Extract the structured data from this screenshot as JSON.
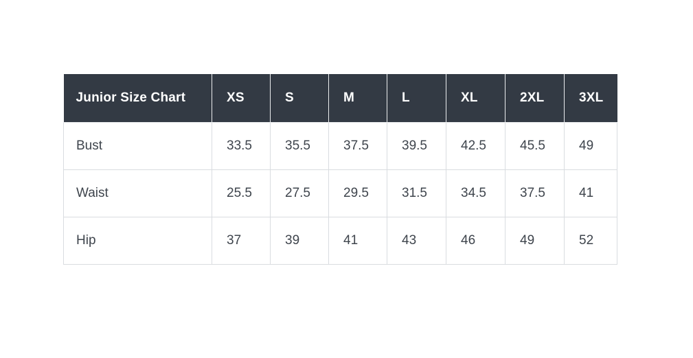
{
  "colors": {
    "page_background": "#ffffff",
    "header_background": "#333a44",
    "header_text": "#ffffff",
    "body_text": "#3e444c",
    "body_border": "#d9dce0",
    "header_border": "#eceef0"
  },
  "chart_data": {
    "type": "table",
    "title": "Junior Size Chart",
    "columns": [
      "XS",
      "S",
      "M",
      "L",
      "XL",
      "2XL",
      "3XL"
    ],
    "rows": [
      {
        "label": "Bust",
        "values": [
          "33.5",
          "35.5",
          "37.5",
          "39.5",
          "42.5",
          "45.5",
          "49"
        ]
      },
      {
        "label": "Waist",
        "values": [
          "25.5",
          "27.5",
          "29.5",
          "31.5",
          "34.5",
          "37.5",
          "41"
        ]
      },
      {
        "label": "Hip",
        "values": [
          "37",
          "39",
          "41",
          "43",
          "46",
          "49",
          "52"
        ]
      }
    ]
  }
}
